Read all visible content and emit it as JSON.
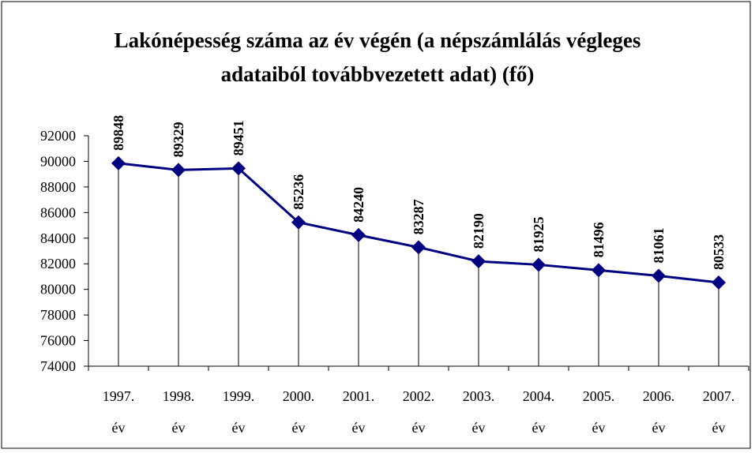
{
  "chart_data": {
    "type": "line",
    "title": "Lakónépesség száma az év végén (a népszámlálás végleges adataiból továbbvezetett adat) (fő)",
    "categories": [
      "1997. év",
      "1998. év",
      "1999. év",
      "2000. év",
      "2001. év",
      "2002. év",
      "2003. év",
      "2004. év",
      "2005. év",
      "2006. év",
      "2007. év"
    ],
    "values": [
      89848,
      89329,
      89451,
      85236,
      84240,
      83287,
      82190,
      81925,
      81496,
      81061,
      80533
    ],
    "color": "#000080",
    "ylim": [
      74000,
      92000
    ],
    "yticks": [
      74000,
      76000,
      78000,
      80000,
      82000,
      84000,
      86000,
      88000,
      90000,
      92000
    ]
  }
}
